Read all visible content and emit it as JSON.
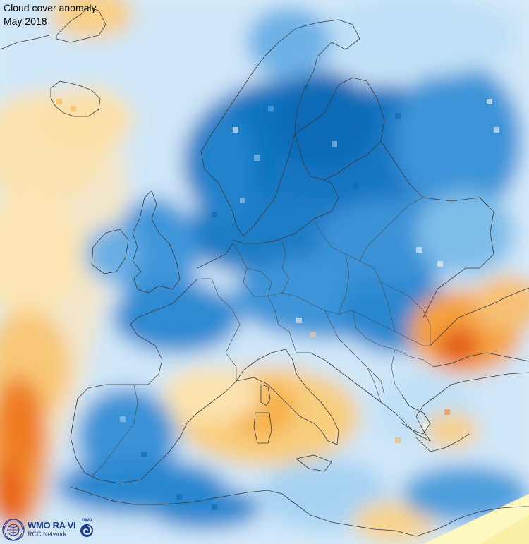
{
  "title": {
    "line1": "Cloud cover anomaly",
    "line2": "May 2018"
  },
  "logos": {
    "wmo_main": "WMO RA VI",
    "wmo_sub": "RCC Network",
    "dwd": "DWD",
    "wmo_icon": "un-laurel-globe-icon",
    "dwd_icon": "dwd-swirl-icon"
  },
  "legend_colors": {
    "strong_negative": "#0569b8",
    "negative": "#3e94d8",
    "weak_negative": "#a9d4f4",
    "neutral": "#f3f8fc",
    "weak_positive": "#fbe0a6",
    "positive": "#f6b349",
    "strong_positive": "#ef7a22",
    "extreme_positive": "#d64a12",
    "no_data_region": "#fdf7c0"
  }
}
